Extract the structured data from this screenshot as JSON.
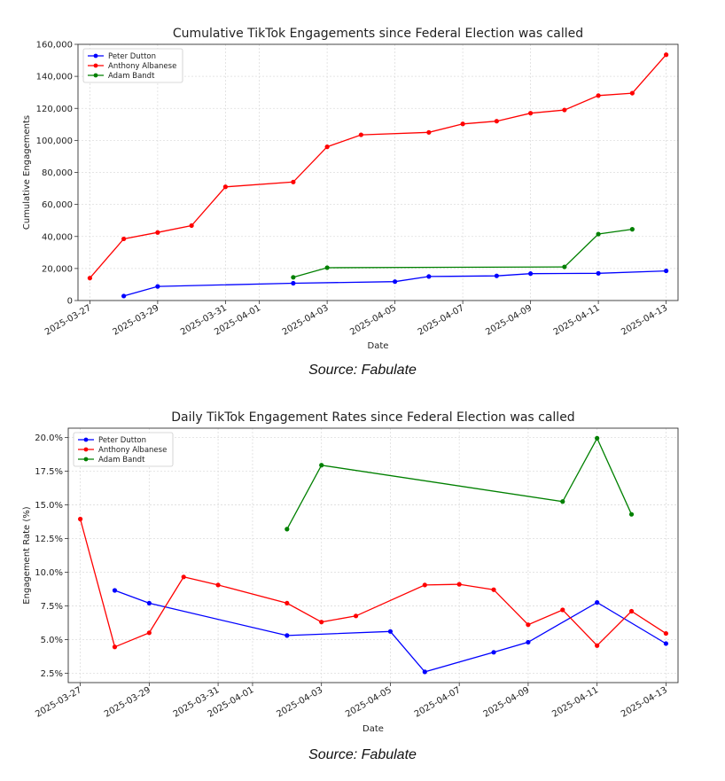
{
  "colors": {
    "Peter Dutton": "#0000ff",
    "Anthony Albanese": "#ff0000",
    "Adam Bandt": "#008000"
  },
  "source_text": "Source: Fabulate",
  "chart_data": [
    {
      "type": "line",
      "title": "Cumulative TikTok Engagements since Federal Election was called",
      "xlabel": "Date",
      "ylabel": "Cumulative Engagements",
      "xlim": [
        "2025-03-27",
        "2025-04-13"
      ],
      "ylim": [
        0,
        160000
      ],
      "x_ticks": [
        "2025-03-27",
        "2025-03-29",
        "2025-03-31",
        "2025-04-01",
        "2025-04-03",
        "2025-04-05",
        "2025-04-07",
        "2025-04-09",
        "2025-04-11",
        "2025-04-13"
      ],
      "y_ticks": [
        0,
        20000,
        40000,
        60000,
        80000,
        100000,
        120000,
        140000,
        160000
      ],
      "y_tick_labels": [
        "0",
        "20,000",
        "40,000",
        "60,000",
        "80,000",
        "100,000",
        "120,000",
        "140,000",
        "160,000"
      ],
      "grid": true,
      "legend": "top-left",
      "series": [
        {
          "name": "Peter Dutton",
          "x": [
            "2025-03-28",
            "2025-03-29",
            "2025-04-02",
            "2025-04-05",
            "2025-04-06",
            "2025-04-08",
            "2025-04-09",
            "2025-04-11",
            "2025-04-13"
          ],
          "y": [
            2800,
            8800,
            10800,
            11800,
            15000,
            15400,
            16800,
            17000,
            18500
          ]
        },
        {
          "name": "Anthony Albanese",
          "x": [
            "2025-03-27",
            "2025-03-28",
            "2025-03-29",
            "2025-03-30",
            "2025-03-31",
            "2025-04-02",
            "2025-04-03",
            "2025-04-04",
            "2025-04-06",
            "2025-04-07",
            "2025-04-08",
            "2025-04-09",
            "2025-04-10",
            "2025-04-11",
            "2025-04-12",
            "2025-04-13"
          ],
          "y": [
            14000,
            38500,
            42500,
            46800,
            71000,
            74000,
            96000,
            103500,
            105000,
            110300,
            112000,
            117000,
            119000,
            128000,
            129500,
            153500
          ]
        },
        {
          "name": "Adam Bandt",
          "x": [
            "2025-04-02",
            "2025-04-03",
            "2025-04-10",
            "2025-04-11",
            "2025-04-12"
          ],
          "y": [
            14500,
            20500,
            21000,
            41500,
            44500
          ]
        }
      ]
    },
    {
      "type": "line",
      "title": "Daily TikTok Engagement Rates since Federal Election was called",
      "xlabel": "Date",
      "ylabel": "Engagement Rate (%)",
      "xlim": [
        "2025-03-27",
        "2025-04-13"
      ],
      "ylim": [
        1.8,
        20.7
      ],
      "x_ticks": [
        "2025-03-27",
        "2025-03-29",
        "2025-03-31",
        "2025-04-01",
        "2025-04-03",
        "2025-04-05",
        "2025-04-07",
        "2025-04-09",
        "2025-04-11",
        "2025-04-13"
      ],
      "y_ticks": [
        2.5,
        5.0,
        7.5,
        10.0,
        12.5,
        15.0,
        17.5,
        20.0
      ],
      "y_tick_labels": [
        "2.5%",
        "5.0%",
        "7.5%",
        "10.0%",
        "12.5%",
        "15.0%",
        "17.5%",
        "20.0%"
      ],
      "grid": true,
      "legend": "top-left",
      "series": [
        {
          "name": "Peter Dutton",
          "x": [
            "2025-03-28",
            "2025-03-29",
            "2025-04-02",
            "2025-04-05",
            "2025-04-06",
            "2025-04-08",
            "2025-04-09",
            "2025-04-11",
            "2025-04-13"
          ],
          "y": [
            8.65,
            7.7,
            5.3,
            5.6,
            2.6,
            4.05,
            4.8,
            7.75,
            4.7
          ]
        },
        {
          "name": "Anthony Albanese",
          "x": [
            "2025-03-27",
            "2025-03-28",
            "2025-03-29",
            "2025-03-30",
            "2025-03-31",
            "2025-04-02",
            "2025-04-03",
            "2025-04-04",
            "2025-04-06",
            "2025-04-07",
            "2025-04-08",
            "2025-04-09",
            "2025-04-10",
            "2025-04-11",
            "2025-04-12",
            "2025-04-13"
          ],
          "y": [
            13.95,
            4.45,
            5.5,
            9.65,
            9.05,
            7.7,
            6.3,
            6.75,
            9.05,
            9.1,
            8.7,
            6.1,
            7.2,
            4.55,
            7.1,
            5.45
          ]
        },
        {
          "name": "Adam Bandt",
          "x": [
            "2025-04-02",
            "2025-04-03",
            "2025-04-10",
            "2025-04-11",
            "2025-04-12"
          ],
          "y": [
            13.2,
            17.95,
            15.25,
            19.95,
            14.3
          ]
        }
      ]
    }
  ]
}
